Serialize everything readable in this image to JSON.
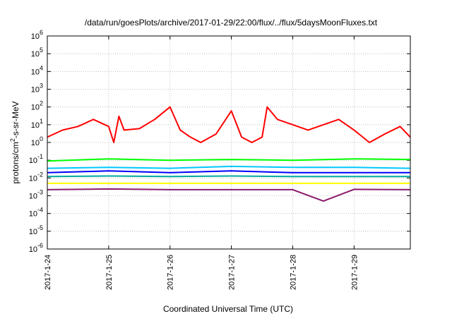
{
  "chart_data": {
    "type": "line",
    "title": "/data/run/goesPlots/archive/2017-01-29/22:00/flux/../flux/5daysMoonFluxes.txt",
    "xlabel": "Coordinated Universal Time (UTC)",
    "ylabel": "protons/cm²-s-sr-MeV",
    "ylabel_parts": {
      "pre": "protons/cm",
      "sup": "2",
      "post": "-s-sr-MeV"
    },
    "y_scale": "log",
    "ylim": [
      "1e-6",
      "1e6"
    ],
    "y_ticks": [
      {
        "base": "10",
        "exp": "-6"
      },
      {
        "base": "10",
        "exp": "-5"
      },
      {
        "base": "10",
        "exp": "-4"
      },
      {
        "base": "10",
        "exp": "-3"
      },
      {
        "base": "10",
        "exp": "-2"
      },
      {
        "base": "10",
        "exp": "-1"
      },
      {
        "base": "10",
        "exp": "0"
      },
      {
        "base": "10",
        "exp": "1"
      },
      {
        "base": "10",
        "exp": "2"
      },
      {
        "base": "10",
        "exp": "3"
      },
      {
        "base": "10",
        "exp": "4"
      },
      {
        "base": "10",
        "exp": "5"
      },
      {
        "base": "10",
        "exp": "6"
      }
    ],
    "x_ticks": [
      "2017-1-24",
      "2017-1-25",
      "2017-1-26",
      "2017-1-27",
      "2017-1-28",
      "2017-1-29"
    ],
    "xlim": [
      "2017-01-24 00:00",
      "2017-01-29 22:00"
    ],
    "grid": true,
    "legend": "none",
    "series": [
      {
        "color": "#ff0000",
        "x": [
          "2017-01-24 00:00",
          "2017-01-24 06:00",
          "2017-01-24 12:00",
          "2017-01-24 18:00",
          "2017-01-25 00:00",
          "2017-01-25 02:00",
          "2017-01-25 04:00",
          "2017-01-25 06:00",
          "2017-01-25 12:00",
          "2017-01-25 18:00",
          "2017-01-26 00:00",
          "2017-01-26 04:00",
          "2017-01-26 08:00",
          "2017-01-26 12:00",
          "2017-01-26 18:00",
          "2017-01-27 00:00",
          "2017-01-27 04:00",
          "2017-01-27 08:00",
          "2017-01-27 12:00",
          "2017-01-27 14:00",
          "2017-01-27 18:00",
          "2017-01-28 00:00",
          "2017-01-28 06:00",
          "2017-01-28 12:00",
          "2017-01-28 18:00",
          "2017-01-29 00:00",
          "2017-01-29 06:00",
          "2017-01-29 12:00",
          "2017-01-29 18:00",
          "2017-01-29 22:00"
        ],
        "y": [
          "2",
          "5",
          "8",
          "20",
          "8",
          "1",
          "30",
          "5",
          "6",
          "20",
          "100",
          "5",
          "2",
          "1",
          "3",
          "60",
          "2",
          "1",
          "2",
          "100",
          "20",
          "10",
          "5",
          "10",
          "20",
          "5",
          "1",
          "3",
          "8",
          "2"
        ]
      },
      {
        "color": "#00ff00",
        "x": [
          "2017-01-24 00:00",
          "2017-01-25 00:00",
          "2017-01-26 00:00",
          "2017-01-27 00:00",
          "2017-01-28 00:00",
          "2017-01-29 00:00",
          "2017-01-29 22:00"
        ],
        "y": [
          "0.09",
          "0.12",
          "0.1",
          "0.11",
          "0.1",
          "0.12",
          "0.11"
        ]
      },
      {
        "color": "#00c8ff",
        "x": [
          "2017-01-24 00:00",
          "2017-01-25 00:00",
          "2017-01-26 00:00",
          "2017-01-27 00:00",
          "2017-01-28 00:00",
          "2017-01-29 00:00",
          "2017-01-29 22:00"
        ],
        "y": [
          "0.035",
          "0.04",
          "0.035",
          "0.045",
          "0.04",
          "0.04",
          "0.035"
        ]
      },
      {
        "color": "#0000ff",
        "x": [
          "2017-01-24 00:00",
          "2017-01-25 00:00",
          "2017-01-26 00:00",
          "2017-01-27 00:00",
          "2017-01-28 00:00",
          "2017-01-29 00:00",
          "2017-01-29 22:00"
        ],
        "y": [
          "0.02",
          "0.025",
          "0.02",
          "0.025",
          "0.02",
          "0.02",
          "0.02"
        ]
      },
      {
        "color": "#00ab9e",
        "x": [
          "2017-01-24 00:00",
          "2017-01-25 00:00",
          "2017-01-26 00:00",
          "2017-01-27 00:00",
          "2017-01-28 00:00",
          "2017-01-29 00:00",
          "2017-01-29 22:00"
        ],
        "y": [
          "0.012",
          "0.013",
          "0.012",
          "0.013",
          "0.012",
          "0.012",
          "0.012"
        ]
      },
      {
        "color": "#ffff00",
        "x": [
          "2017-01-24 00:00",
          "2017-01-25 00:00",
          "2017-01-26 00:00",
          "2017-01-27 00:00",
          "2017-01-28 00:00",
          "2017-01-29 00:00",
          "2017-01-29 22:00"
        ],
        "y": [
          "0.005",
          "0.005",
          "0.005",
          "0.005",
          "0.005",
          "0.005",
          "0.005"
        ]
      },
      {
        "color": "#8b1a6b",
        "x": [
          "2017-01-24 00:00",
          "2017-01-25 00:00",
          "2017-01-26 00:00",
          "2017-01-27 00:00",
          "2017-01-28 00:00",
          "2017-01-28 12:00",
          "2017-01-29 00:00",
          "2017-01-29 22:00"
        ],
        "y": [
          "0.0022",
          "0.0024",
          "0.0022",
          "0.0022",
          "0.0022",
          "0.0005",
          "0.0023",
          "0.0022"
        ]
      }
    ]
  }
}
